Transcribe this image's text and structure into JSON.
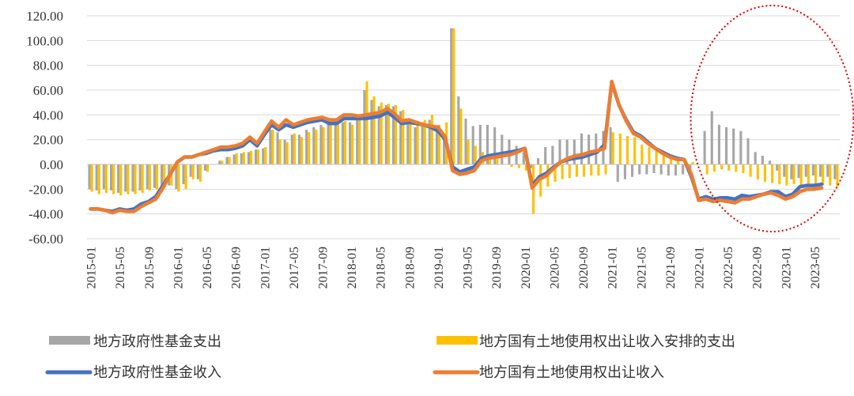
{
  "chart_data": {
    "type": "bar+line",
    "title": "",
    "xlabel": "",
    "ylabel": "",
    "ylim": [
      -60,
      120
    ],
    "y_ticks": [
      "120.00",
      "100.00",
      "80.00",
      "60.00",
      "40.00",
      "20.00",
      "0.00",
      "-20.00",
      "-40.00",
      "-60.00"
    ],
    "x_tick_labels": [
      "2015-01",
      "2015-05",
      "2015-09",
      "2016-01",
      "2016-05",
      "2016-09",
      "2017-01",
      "2017-05",
      "2017-09",
      "2018-01",
      "2018-05",
      "2018-09",
      "2019-01",
      "2019-05",
      "2019-09",
      "2020-01",
      "2020-05",
      "2020-09",
      "2021-01",
      "2021-05",
      "2021-09",
      "2022-01",
      "2022-05",
      "2022-09",
      "2023-01",
      "2023-05"
    ],
    "x_start": "2015-01",
    "x_end": "2023-07",
    "grid": "horizontal",
    "legend_position": "bottom",
    "colors": {
      "gov_fund_spend": "#a6a6a6",
      "land_sale_spend": "#ffc000",
      "gov_fund_income": "#4472c4",
      "land_sale_income": "#ed7d31",
      "highlight_ellipse": "#e00000"
    },
    "highlight_region": {
      "from": "2021-12",
      "to": "2023-07",
      "style": "red dotted ellipse"
    },
    "series": [
      {
        "name": "地方政府性基金支出",
        "type": "bar",
        "color_key": "gov_fund_spend",
        "values": [
          -20,
          -21,
          -20,
          -21,
          -23,
          -22,
          -22,
          -21,
          -20,
          -19,
          -18,
          -17,
          -20,
          -16,
          -10,
          -12,
          -5,
          0,
          3,
          6,
          8,
          9,
          10,
          12,
          13,
          28,
          26,
          20,
          24,
          24,
          28,
          30,
          32,
          33,
          35,
          34,
          34,
          36,
          60,
          52,
          47,
          48,
          47,
          43,
          34,
          30,
          34,
          36,
          30,
          25,
          110,
          55,
          37,
          31,
          32,
          32,
          30,
          24,
          20,
          15,
          10,
          -3,
          5,
          14,
          15,
          20,
          20,
          20,
          25,
          24,
          25,
          27,
          30,
          -14,
          -12,
          -10,
          -8,
          -8,
          -7,
          -8,
          -9,
          -9,
          -8,
          -5,
          0,
          27,
          43,
          32,
          30,
          29,
          27,
          21,
          10,
          7,
          3,
          -5,
          -10,
          -12,
          -11,
          -10,
          -9,
          -10,
          -10,
          -12
        ]
      },
      {
        "name": "地方国有土地使用权出让收入安排的支出",
        "type": "bar",
        "color_key": "land_sale_spend",
        "values": [
          -22,
          -24,
          -23,
          -24,
          -25,
          -24,
          -24,
          -23,
          -21,
          -20,
          -19,
          -17,
          -22,
          -20,
          -12,
          -14,
          -6,
          0,
          3,
          6,
          9,
          10,
          11,
          12,
          14,
          28,
          20,
          18,
          25,
          22,
          26,
          28,
          30,
          32,
          36,
          35,
          32,
          38,
          67,
          55,
          50,
          49,
          48,
          44,
          36,
          32,
          36,
          40,
          32,
          34,
          110,
          45,
          20,
          15,
          10,
          8,
          5,
          0,
          -2,
          -3,
          -5,
          -40,
          -26,
          -18,
          -14,
          -12,
          -11,
          -10,
          -10,
          -9,
          -9,
          -8,
          26,
          25,
          23,
          22,
          16,
          14,
          12,
          10,
          8,
          6,
          4,
          2,
          0,
          -8,
          -6,
          -4,
          -5,
          -6,
          -7,
          -10,
          -12,
          -14,
          -15,
          -16,
          -17,
          -16,
          -17,
          -18,
          -16,
          -17,
          -17,
          -18
        ]
      },
      {
        "name": "地方政府性基金收入",
        "type": "line",
        "color_key": "gov_fund_income",
        "values": [
          -36,
          -36,
          -37,
          -38,
          -36,
          -37,
          -36,
          -32,
          -30,
          -26,
          -17,
          -8,
          2,
          6,
          6,
          8,
          9,
          11,
          12,
          12,
          13,
          15,
          20,
          15,
          24,
          32,
          28,
          32,
          30,
          32,
          34,
          35,
          36,
          33,
          33,
          37,
          37,
          37,
          37,
          38,
          39,
          42,
          38,
          33,
          34,
          33,
          32,
          30,
          27,
          20,
          -2,
          -6,
          -4,
          -2,
          5,
          7,
          8,
          9,
          10,
          11,
          13,
          -17,
          -10,
          -7,
          -2,
          2,
          4,
          5,
          6,
          8,
          10,
          16,
          66,
          48,
          36,
          26,
          23,
          18,
          13,
          10,
          7,
          5,
          4,
          -10,
          -28,
          -26,
          -28,
          -27,
          -27,
          -28,
          -25,
          -26,
          -25,
          -24,
          -22,
          -22,
          -26,
          -24,
          -18,
          -17,
          -17,
          -16
        ]
      },
      {
        "name": "地方国有土地使用权出让收入",
        "type": "line",
        "color_key": "land_sale_income",
        "values": [
          -36,
          -36,
          -37,
          -39,
          -37,
          -38,
          -38,
          -34,
          -31,
          -28,
          -19,
          -8,
          2,
          6,
          6,
          8,
          10,
          12,
          14,
          14,
          15,
          17,
          22,
          17,
          26,
          35,
          30,
          36,
          32,
          34,
          36,
          37,
          38,
          36,
          36,
          40,
          40,
          39,
          40,
          41,
          42,
          45,
          41,
          35,
          36,
          34,
          32,
          31,
          30,
          22,
          -5,
          -8,
          -7,
          -5,
          3,
          5,
          6,
          7,
          8,
          10,
          13,
          -19,
          -12,
          -9,
          -3,
          2,
          5,
          7,
          8,
          10,
          11,
          13,
          67,
          48,
          35,
          25,
          22,
          17,
          13,
          9,
          6,
          4,
          4,
          -8,
          -29,
          -28,
          -30,
          -29,
          -30,
          -31,
          -28,
          -28,
          -26,
          -24,
          -23,
          -25,
          -28,
          -26,
          -22,
          -20,
          -20,
          -19
        ]
      }
    ]
  },
  "legend": {
    "items": [
      {
        "label": "地方政府性基金支出"
      },
      {
        "label": "地方国有土地使用权出让收入安排的支出"
      },
      {
        "label": "地方政府性基金收入"
      },
      {
        "label": "地方国有土地使用权出让收入"
      }
    ]
  }
}
